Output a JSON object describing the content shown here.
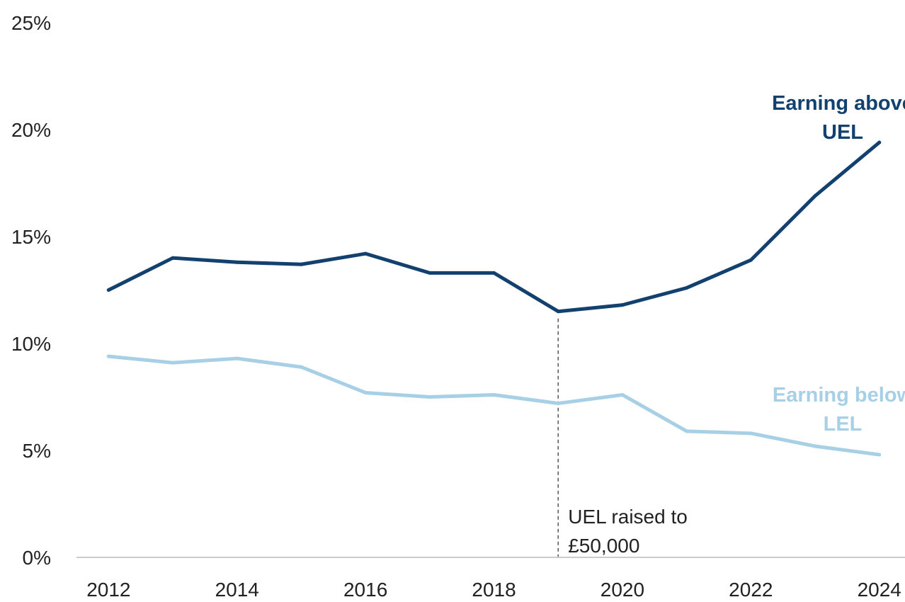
{
  "chart_data": {
    "type": "line",
    "title": "",
    "xlabel": "",
    "ylabel": "",
    "x": [
      2012,
      2013,
      2014,
      2015,
      2016,
      2017,
      2018,
      2019,
      2020,
      2021,
      2022,
      2023,
      2024
    ],
    "xlim": [
      2011.5,
      2024.4
    ],
    "ylim": [
      0,
      25
    ],
    "x_ticks": [
      "2012",
      "2014",
      "2016",
      "2018",
      "2020",
      "2022",
      "2024"
    ],
    "y_ticks": [
      "0%",
      "5%",
      "10%",
      "15%",
      "20%",
      "25%"
    ],
    "grid": false,
    "legend": "none (series labelled directly on the chart)",
    "series": [
      {
        "name": "Earning above UEL",
        "label_lines": [
          "Earning above",
          "UEL"
        ],
        "color": "#12406f",
        "values": [
          12.5,
          14.0,
          13.8,
          13.7,
          14.2,
          13.3,
          13.3,
          11.5,
          11.8,
          12.6,
          13.9,
          16.9,
          19.4
        ]
      },
      {
        "name": "Earning below LEL",
        "label_lines": [
          "Earning below",
          "LEL"
        ],
        "color": "#a7d0e6",
        "values": [
          9.4,
          9.1,
          9.3,
          8.9,
          7.7,
          7.5,
          7.6,
          7.2,
          7.6,
          5.9,
          5.8,
          5.2,
          4.8
        ]
      }
    ],
    "annotations": [
      {
        "text_lines": [
          "UEL raised to",
          "£50,000"
        ],
        "x": 2019,
        "style": "dashed vertical line"
      }
    ]
  },
  "colors": {
    "axis": "#cccccc",
    "text": "#222222",
    "annotation_line": "#555555"
  }
}
